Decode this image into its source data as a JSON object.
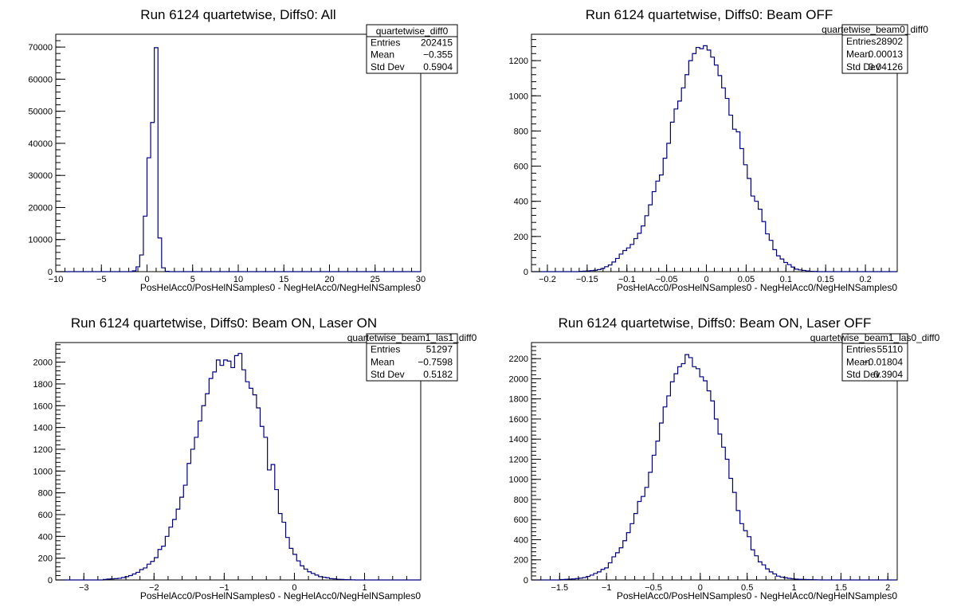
{
  "chart_data": [
    {
      "type": "bar",
      "title": "Run 6124 quartetwise, Diffs0: All",
      "xlabel": "PosHelAcc0/PosHelNSamples0 - NegHelAcc0/NegHelNSamples0",
      "ylabel": "",
      "xlim": [
        -10,
        30
      ],
      "ylim": [
        0,
        74000
      ],
      "x_ticks": [
        -10,
        -5,
        0,
        5,
        10,
        15,
        20,
        25,
        30
      ],
      "y_ticks": [
        0,
        10000,
        20000,
        30000,
        40000,
        50000,
        60000,
        70000
      ],
      "bins": {
        "low": -10,
        "width": 0.4
      },
      "counts": [
        0,
        0,
        0,
        0,
        0,
        0,
        0,
        0,
        0,
        0,
        0,
        0,
        0,
        0,
        0,
        0,
        0,
        0,
        0,
        0,
        0,
        250,
        1500,
        5200,
        17300,
        35500,
        46500,
        69800,
        10500,
        1200,
        100,
        0,
        0,
        0,
        0,
        0,
        0,
        0,
        0,
        0,
        0,
        0,
        0,
        0,
        0,
        0,
        0,
        0,
        0,
        0,
        0,
        0,
        0,
        0,
        0,
        0,
        0,
        0,
        0,
        0,
        0,
        0,
        0,
        0,
        0,
        0,
        0,
        0,
        0,
        0,
        0,
        0,
        0,
        0,
        0,
        0,
        0,
        0,
        0,
        0,
        0,
        0,
        0,
        0,
        0,
        0,
        0,
        0,
        0,
        0,
        0,
        0,
        0,
        0,
        0,
        0,
        0,
        0,
        0,
        0
      ],
      "stats": {
        "name": "quartetwise_diff0",
        "entries": "202415",
        "mean": "−0.355",
        "std_dev": "0.5904"
      }
    },
    {
      "type": "bar",
      "title": "Run 6124 quartetwise, Diffs0: Beam OFF",
      "xlabel": "PosHelAcc0/PosHelNSamples0 - NegHelAcc0/NegHelNSamples0",
      "ylabel": "",
      "xlim": [
        -0.22,
        0.24
      ],
      "ylim": [
        0,
        1350
      ],
      "x_ticks": [
        -0.2,
        -0.15,
        -0.1,
        -0.05,
        0,
        0.05,
        0.1,
        0.15,
        0.2
      ],
      "x_tick_labels": [
        "−0.2",
        "−0.15",
        "−0.1",
        "−0.05",
        "0",
        "0.05",
        "0.1",
        "0.15",
        "0.2"
      ],
      "y_ticks": [
        0,
        200,
        400,
        600,
        800,
        1000,
        1200
      ],
      "bins": {
        "low": -0.22,
        "width": 0.0046
      },
      "counts": [
        0,
        0,
        0,
        0,
        0,
        0,
        0,
        0,
        0,
        0,
        0,
        0,
        0,
        2,
        3,
        4,
        6,
        8,
        12,
        18,
        28,
        38,
        55,
        75,
        100,
        120,
        135,
        155,
        188,
        218,
        260,
        318,
        380,
        455,
        515,
        550,
        645,
        730,
        850,
        925,
        970,
        1045,
        1120,
        1200,
        1240,
        1275,
        1268,
        1285,
        1260,
        1220,
        1175,
        1115,
        1045,
        985,
        890,
        810,
        795,
        700,
        608,
        530,
        430,
        400,
        355,
        285,
        215,
        178,
        125,
        90,
        72,
        52,
        40,
        26,
        14,
        10,
        7,
        4,
        2,
        1,
        0,
        0,
        0,
        0,
        0,
        0,
        0,
        0,
        0,
        0,
        0,
        0,
        0,
        0,
        0,
        0,
        0,
        0,
        0,
        0,
        0,
        0
      ]
    },
    {
      "type": "bar",
      "title": "Run 6124 quartetwise, Diffs0: Beam ON, Laser ON",
      "xlabel": "PosHelAcc0/PosHelNSamples0 - NegHelAcc0/NegHelNSamples0",
      "ylabel": "",
      "xlim": [
        -3.4,
        1.8
      ],
      "ylim": [
        0,
        2180
      ],
      "x_ticks": [
        -3,
        -2,
        -1,
        0,
        1
      ],
      "x_tick_labels": [
        "−3",
        "−2",
        "−1",
        "0",
        "1"
      ],
      "y_ticks": [
        0,
        200,
        400,
        600,
        800,
        1000,
        1200,
        1400,
        1600,
        1800,
        2000
      ],
      "bins": {
        "low": -3.4,
        "width": 0.052
      },
      "counts": [
        0,
        0,
        0,
        0,
        0,
        0,
        0,
        0,
        0,
        0,
        0,
        0,
        0,
        5,
        8,
        10,
        12,
        15,
        22,
        30,
        40,
        55,
        70,
        95,
        110,
        145,
        170,
        205,
        280,
        310,
        400,
        485,
        555,
        650,
        760,
        870,
        1070,
        1200,
        1310,
        1460,
        1600,
        1710,
        1850,
        1910,
        2020,
        1970,
        2020,
        2010,
        1950,
        2060,
        2080,
        1930,
        1820,
        1760,
        1700,
        1580,
        1410,
        1310,
        1010,
        1060,
        830,
        610,
        530,
        390,
        290,
        235,
        175,
        130,
        100,
        75,
        60,
        45,
        30,
        25,
        20,
        12,
        10,
        6,
        5,
        3,
        2,
        1,
        0,
        0,
        0,
        0,
        0,
        0,
        0,
        0,
        0,
        0,
        0,
        0,
        0,
        0,
        0,
        0,
        0,
        0
      ]
    },
    {
      "type": "bar",
      "title": "Run 6124 quartetwise, Diffs0: Beam ON, Laser OFF",
      "xlabel": "PosHelAcc0/PosHelNSamples0 - NegHelAcc0/NegHelNSamples0",
      "ylabel": "",
      "xlim": [
        -1.8,
        2.1
      ],
      "ylim": [
        0,
        2360
      ],
      "x_ticks": [
        -1.5,
        -1,
        -0.5,
        0,
        0.5,
        1,
        1.5,
        2
      ],
      "x_tick_labels": [
        "−1.5",
        "−1",
        "−0.5",
        "0",
        "0.5",
        "1",
        "1.5",
        "2"
      ],
      "y_ticks": [
        0,
        200,
        400,
        600,
        800,
        1000,
        1200,
        1400,
        1600,
        1800,
        2000,
        2200
      ],
      "bins": {
        "low": -1.8,
        "width": 0.039
      },
      "counts": [
        0,
        0,
        0,
        0,
        0,
        0,
        0,
        0,
        4,
        6,
        8,
        10,
        14,
        18,
        24,
        35,
        48,
        65,
        80,
        105,
        120,
        170,
        230,
        270,
        320,
        390,
        470,
        560,
        660,
        780,
        830,
        920,
        1070,
        1240,
        1380,
        1560,
        1720,
        1830,
        1970,
        2050,
        2120,
        2150,
        2240,
        2210,
        2120,
        2100,
        2020,
        1980,
        1880,
        1780,
        1600,
        1450,
        1320,
        1200,
        1010,
        870,
        690,
        560,
        490,
        430,
        300,
        240,
        180,
        150,
        110,
        80,
        60,
        38,
        28,
        22,
        16,
        12,
        8,
        6,
        5,
        4,
        3,
        2,
        1,
        0,
        0,
        0,
        0,
        0,
        0,
        0,
        0,
        0,
        0,
        0,
        0,
        0,
        0,
        0,
        0,
        0,
        0,
        0,
        0,
        0
      ],
      "stats": {
        "name": "quartetwise_beam1_las0_diff0",
        "entries": "55110",
        "mean": "−0.01804",
        "std_dev": "0.3904"
      }
    }
  ],
  "stats_boxes": [
    {
      "name": "quartetwise_diff0",
      "entries": "202415",
      "mean": "−0.355",
      "std_dev": "0.5904"
    },
    {
      "name": "quartetwise_beam0_diff0",
      "entries": "28902",
      "mean": "0.00013",
      "std_dev": "0.04126"
    },
    {
      "name": "quartetwise_beam1_las1_diff0",
      "entries": "51297",
      "mean": "−0.7598",
      "std_dev": "0.5182"
    },
    {
      "name": "quartetwise_beam1_las0_diff0",
      "entries": "55110",
      "mean": "−0.01804",
      "std_dev": "0.3904"
    }
  ],
  "stats_labels": {
    "entries": "Entries",
    "mean": "Mean",
    "std_dev": "Std Dev"
  },
  "colors": {
    "line": "#000080",
    "axis": "#000000",
    "background": "#ffffff"
  }
}
